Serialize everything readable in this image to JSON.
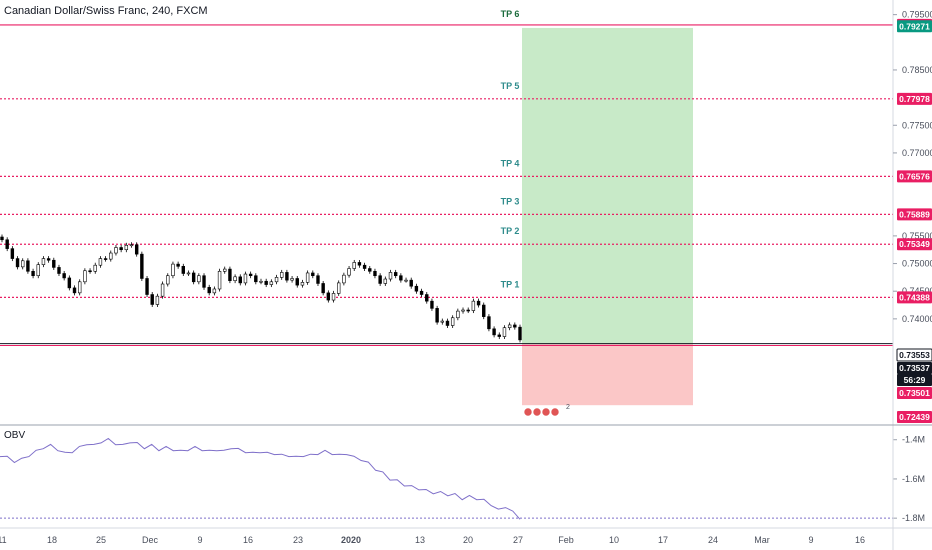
{
  "title": "Canadian Dollar/Swiss Franc, 240, FXCM",
  "obv_label": "OBV",
  "colors": {
    "level_line": "#e91e63",
    "tp_text": "#2f8c8c",
    "tp6_text": "#1b6b3c",
    "profit_zone": "#c8eac8",
    "loss_zone": "#fbc7c7",
    "candle_up": "#26a69a",
    "candle_down": "#000000",
    "obv_line": "#7e6fc9",
    "price_badge_dark": "#131722",
    "price_badge_green": "#089981"
  },
  "chart_data": [
    {
      "type": "candlestick",
      "symbol": "CADCHF",
      "ylim": [
        0.7228,
        0.7962
      ],
      "y_ticks": [
        "0.79500",
        "0.78500",
        "0.77500",
        "0.77000",
        "0.75500",
        "0.75000",
        "0.74500",
        "0.74000"
      ],
      "x_ticks": [
        "11",
        "18",
        "25",
        "Dec",
        "9",
        "16",
        "23",
        "2020",
        "13",
        "20",
        "27",
        "Feb",
        "10",
        "17",
        "24",
        "Mar",
        "9",
        "16"
      ],
      "close_series": [
        0.7543,
        0.7527,
        0.7509,
        0.7494,
        0.7505,
        0.7486,
        0.7478,
        0.7498,
        0.7509,
        0.7506,
        0.7493,
        0.7482,
        0.7474,
        0.7456,
        0.7447,
        0.7467,
        0.7487,
        0.7486,
        0.7497,
        0.7509,
        0.7508,
        0.7519,
        0.7529,
        0.7525,
        0.7533,
        0.7534,
        0.7517,
        0.7473,
        0.7444,
        0.7426,
        0.7441,
        0.7463,
        0.7478,
        0.7499,
        0.7495,
        0.7482,
        0.7483,
        0.7467,
        0.7478,
        0.7457,
        0.7447,
        0.7454,
        0.7486,
        0.749,
        0.7469,
        0.7476,
        0.7465,
        0.7481,
        0.7478,
        0.7467,
        0.7468,
        0.7462,
        0.7467,
        0.7475,
        0.7484,
        0.747,
        0.7473,
        0.7461,
        0.7466,
        0.7483,
        0.7478,
        0.7464,
        0.7447,
        0.7434,
        0.7446,
        0.7465,
        0.7479,
        0.7491,
        0.7502,
        0.7497,
        0.7491,
        0.7486,
        0.7478,
        0.7464,
        0.7472,
        0.7484,
        0.7478,
        0.747,
        0.747,
        0.7459,
        0.745,
        0.7444,
        0.7432,
        0.7419,
        0.7394,
        0.7396,
        0.7388,
        0.7402,
        0.7414,
        0.7416,
        0.7415,
        0.7432,
        0.7425,
        0.7404,
        0.7382,
        0.7371,
        0.7368,
        0.7384,
        0.7389,
        0.7385,
        0.7362
      ],
      "levels": [
        {
          "label": "TP 6",
          "value": "0.79314"
        },
        {
          "label": "TP 5",
          "value": "0.77978"
        },
        {
          "label": "TP 4",
          "value": "0.76576"
        },
        {
          "label": "TP 3",
          "value": "0.75889"
        },
        {
          "label": "TP 2",
          "value": "0.75349"
        },
        {
          "label": "TP 1",
          "value": "0.74388"
        }
      ],
      "entry_price": "0.73553",
      "current_price": "0.73537",
      "countdown": "56:29",
      "stop_price": "0.73501",
      "stop_zone_bottom": "0.72439",
      "target_badge": "0.79271",
      "event_badge_count": "2"
    },
    {
      "type": "line",
      "name": "OBV",
      "y_ticks": [
        "-1.4M",
        "-1.6M",
        "-1.8M"
      ],
      "ylim": [
        -1.84,
        -1.33
      ],
      "values": [
        -1.48,
        -1.49,
        -1.51,
        -1.5,
        -1.48,
        -1.46,
        -1.44,
        -1.43,
        -1.45,
        -1.47,
        -1.46,
        -1.44,
        -1.42,
        -1.43,
        -1.41,
        -1.4,
        -1.42,
        -1.43,
        -1.41,
        -1.42,
        -1.44,
        -1.43,
        -1.45,
        -1.44,
        -1.45,
        -1.46,
        -1.45,
        -1.44,
        -1.45,
        -1.46,
        -1.45,
        -1.46,
        -1.44,
        -1.45,
        -1.46,
        -1.47,
        -1.46,
        -1.47,
        -1.47,
        -1.48,
        -1.48,
        -1.49,
        -1.48,
        -1.48,
        -1.47,
        -1.46,
        -1.47,
        -1.48,
        -1.47,
        -1.49,
        -1.5,
        -1.52,
        -1.55,
        -1.57,
        -1.6,
        -1.61,
        -1.63,
        -1.64,
        -1.65,
        -1.66,
        -1.67,
        -1.67,
        -1.68,
        -1.68,
        -1.7,
        -1.69,
        -1.7,
        -1.71,
        -1.73,
        -1.76,
        -1.74,
        -1.77,
        -1.8
      ],
      "dotted_reference": "-1.80"
    }
  ]
}
